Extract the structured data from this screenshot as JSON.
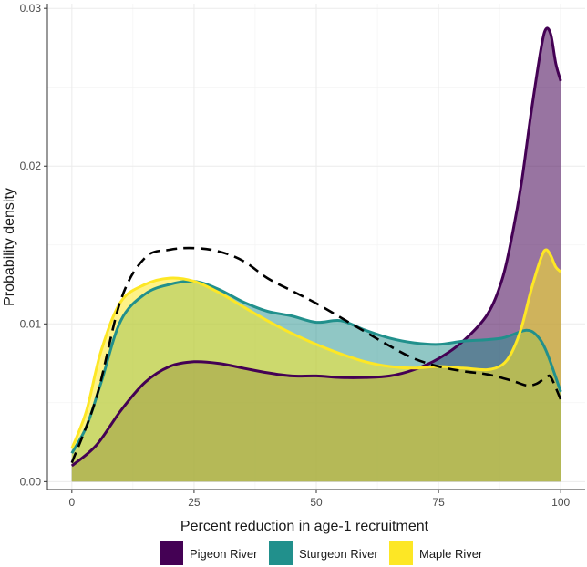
{
  "chart_data": {
    "type": "area",
    "xlabel": "Percent reduction in age-1 recruitment",
    "ylabel": "Probability density",
    "xlim": [
      -5,
      105
    ],
    "ylim": [
      -0.0005,
      0.0303
    ],
    "x_ticks": [
      0,
      25,
      50,
      75,
      100
    ],
    "x_tick_labels": [
      "0",
      "25",
      "50",
      "75",
      "100"
    ],
    "y_ticks": [
      0.0,
      0.01,
      0.02,
      0.03
    ],
    "y_tick_labels": [
      "0.00",
      "0.01",
      "0.02",
      "0.03"
    ],
    "grid": true,
    "legend_position": "bottom",
    "series": [
      {
        "name": "Pigeon River",
        "color": "#440154",
        "fill_opacity": 0.55,
        "line_style": "solid",
        "x": [
          0,
          5,
          10,
          15,
          20,
          25,
          30,
          35,
          40,
          45,
          50,
          55,
          60,
          65,
          70,
          75,
          80,
          85,
          88,
          90,
          92,
          94,
          96,
          97,
          98,
          99,
          100
        ],
        "values": [
          0.001,
          0.0023,
          0.0045,
          0.0063,
          0.0073,
          0.0076,
          0.0075,
          0.0072,
          0.0069,
          0.0067,
          0.0067,
          0.0066,
          0.0066,
          0.0067,
          0.0071,
          0.0078,
          0.0089,
          0.0106,
          0.0128,
          0.0155,
          0.019,
          0.0235,
          0.0275,
          0.0287,
          0.0283,
          0.0265,
          0.0254
        ]
      },
      {
        "name": "Sturgeon River",
        "color": "#21908c",
        "fill_opacity": 0.5,
        "line_style": "solid",
        "x": [
          0,
          3,
          6,
          10,
          15,
          20,
          25,
          30,
          35,
          40,
          45,
          50,
          55,
          60,
          65,
          70,
          75,
          80,
          85,
          88,
          90,
          93,
          95,
          97,
          100
        ],
        "values": [
          0.0018,
          0.0035,
          0.0063,
          0.0102,
          0.0119,
          0.0125,
          0.0127,
          0.0122,
          0.0114,
          0.0108,
          0.0105,
          0.0101,
          0.0102,
          0.0096,
          0.0091,
          0.0088,
          0.0087,
          0.0089,
          0.009,
          0.0091,
          0.0093,
          0.0096,
          0.0093,
          0.0083,
          0.0057
        ]
      },
      {
        "name": "Maple River",
        "color": "#fde725",
        "fill_opacity": 0.55,
        "line_style": "solid",
        "x": [
          0,
          3,
          6,
          10,
          15,
          20,
          25,
          30,
          35,
          40,
          45,
          50,
          55,
          60,
          65,
          70,
          75,
          80,
          85,
          88,
          90,
          92,
          94,
          96,
          97,
          98,
          99,
          100
        ],
        "values": [
          0.0021,
          0.0045,
          0.0083,
          0.0114,
          0.0125,
          0.0129,
          0.0127,
          0.012,
          0.0111,
          0.0102,
          0.0094,
          0.0087,
          0.0081,
          0.0076,
          0.0073,
          0.0072,
          0.0073,
          0.0072,
          0.0071,
          0.0074,
          0.0082,
          0.0098,
          0.0122,
          0.0142,
          0.0147,
          0.0143,
          0.0136,
          0.0133
        ]
      },
      {
        "name": "",
        "color": "#000000",
        "fill_opacity": 0,
        "line_style": "dashed",
        "x": [
          0,
          5,
          10,
          15,
          20,
          25,
          30,
          35,
          40,
          45,
          50,
          55,
          60,
          65,
          70,
          75,
          80,
          85,
          90,
          93,
          95,
          97,
          98,
          100
        ],
        "values": [
          0.0012,
          0.0053,
          0.0115,
          0.0142,
          0.0147,
          0.0148,
          0.0146,
          0.014,
          0.0129,
          0.0121,
          0.0113,
          0.0104,
          0.0095,
          0.0086,
          0.0078,
          0.0073,
          0.007,
          0.0068,
          0.0064,
          0.0061,
          0.0062,
          0.0066,
          0.0066,
          0.0052
        ]
      }
    ]
  }
}
